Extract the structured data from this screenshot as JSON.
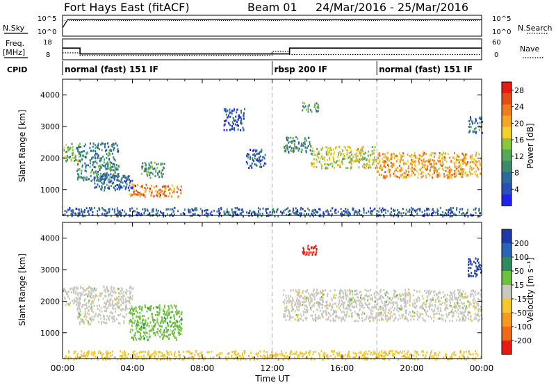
{
  "header": {
    "station": "Fort Hays East (fitACF)",
    "beam": "Beam 01",
    "daterange": "24/Mar/2016 - 25/Mar/2016"
  },
  "left_labels": {
    "nsky": "N.Sky",
    "freq": "Freq.",
    "freq_unit": "[MHz]",
    "cpid": "CPID"
  },
  "right_labels": {
    "nsearch": "N.Search",
    "nave": "Nave"
  },
  "cpid_segments": [
    {
      "label": "normal (fast) 151 IF",
      "start_h": 0
    },
    {
      "label": "rbsp 200 IF",
      "start_h": 12
    },
    {
      "label": "normal (fast) 151 IF",
      "start_h": 18
    }
  ],
  "chart_data": [
    {
      "type": "line",
      "panel": "noise",
      "x_unit": "hours UT",
      "xlim": [
        0,
        24
      ],
      "left_ticks": [
        "10^5",
        "10^0"
      ],
      "right_ticks": [
        "10^5",
        "10^0"
      ],
      "series": [
        {
          "name": "N.Sky",
          "x": [
            0,
            0.3,
            24
          ],
          "y": [
            0.4,
            0.8,
            0.8
          ]
        },
        {
          "name": "N.Search",
          "x": [
            0,
            24
          ],
          "y": [
            0.75,
            0.75
          ]
        }
      ]
    },
    {
      "type": "line",
      "panel": "frequency",
      "x_unit": "hours UT",
      "xlim": [
        0,
        24
      ],
      "left_ticks": [
        "18",
        "8"
      ],
      "right_ticks": [
        "60",
        "0"
      ],
      "freq_ylim": [
        8,
        18
      ],
      "nave_ylim": [
        0,
        60
      ],
      "series": [
        {
          "name": "Freq.",
          "x": [
            0,
            1,
            1,
            13,
            13,
            24
          ],
          "y": [
            13.6,
            13.6,
            10.8,
            10.8,
            13.6,
            13.6
          ]
        },
        {
          "name": "Nave",
          "x": [
            0,
            1,
            1,
            12,
            12,
            13,
            13,
            24
          ],
          "y": [
            20,
            20,
            13,
            13,
            24,
            24,
            15,
            15
          ]
        }
      ]
    },
    {
      "type": "heatmap",
      "panel": "power",
      "ylabel": "Slant Range [km]",
      "xlim": [
        0,
        24
      ],
      "ylim": [
        180,
        4500
      ],
      "yticks": [
        1000,
        2000,
        3000,
        4000
      ],
      "colorbar": {
        "label": "Power [dB]",
        "ticks": [
          4,
          8,
          12,
          16,
          20,
          24,
          28
        ],
        "colors": [
          "#1e22f0",
          "#2a4fb6",
          "#2e6a9e",
          "#3d8a6a",
          "#56a85a",
          "#8cc63f",
          "#f2d22a",
          "#f6a623",
          "#f07d1c",
          "#e84d17",
          "#e81a12"
        ]
      },
      "regions": [
        {
          "x": [
            0,
            1
          ],
          "y": [
            1900,
            2500
          ],
          "level": 0.45
        },
        {
          "x": [
            0.8,
            3.2
          ],
          "y": [
            1300,
            2500
          ],
          "level": 0.3
        },
        {
          "x": [
            1.8,
            4.0
          ],
          "y": [
            1000,
            1500
          ],
          "level": 0.2
        },
        {
          "x": [
            3.8,
            6.8
          ],
          "y": [
            800,
            1200
          ],
          "level": 0.75
        },
        {
          "x": [
            4.5,
            5.8
          ],
          "y": [
            1400,
            1900
          ],
          "level": 0.35
        },
        {
          "x": [
            9.2,
            10.4
          ],
          "y": [
            2900,
            3600
          ],
          "level": 0.15
        },
        {
          "x": [
            10.5,
            11.6
          ],
          "y": [
            1700,
            2300
          ],
          "level": 0.2
        },
        {
          "x": [
            13.7,
            14.7
          ],
          "y": [
            3500,
            3800
          ],
          "level": 0.35
        },
        {
          "x": [
            12.6,
            14.2
          ],
          "y": [
            2200,
            2700
          ],
          "level": 0.3
        },
        {
          "x": [
            14.2,
            18
          ],
          "y": [
            1700,
            2400
          ],
          "level": 0.55
        },
        {
          "x": [
            18,
            24
          ],
          "y": [
            1400,
            2200
          ],
          "level": 0.7
        },
        {
          "x": [
            23.2,
            24
          ],
          "y": [
            2800,
            3400
          ],
          "level": 0.25
        },
        {
          "x": [
            0,
            24
          ],
          "y": [
            180,
            450
          ],
          "level": 0.2
        }
      ]
    },
    {
      "type": "heatmap",
      "panel": "velocity",
      "xlabel": "Time UT",
      "ylabel": "Slant Range [km]",
      "xlim": [
        0,
        24
      ],
      "xticks": [
        "00:00",
        "04:00",
        "08:00",
        "12:00",
        "16:00",
        "20:00",
        "00:00"
      ],
      "ylim": [
        180,
        4500
      ],
      "yticks": [
        1000,
        2000,
        3000,
        4000
      ],
      "colorbar": {
        "label": "Velocity [m s⁻¹]",
        "ticks": [
          200,
          100,
          50,
          15,
          -15,
          -50,
          -100,
          -200
        ],
        "colors": [
          "#1e3aa8",
          "#2a63b8",
          "#2f8a5c",
          "#6cc23c",
          "#c8c8c0",
          "#f2c82a",
          "#f59a1e",
          "#f06a18",
          "#e81a12"
        ]
      },
      "regions": [
        {
          "x": [
            0,
            1
          ],
          "y": [
            1900,
            2500
          ],
          "v": 15
        },
        {
          "x": [
            0.8,
            4.0
          ],
          "y": [
            1300,
            2500
          ],
          "v": 0
        },
        {
          "x": [
            3.8,
            6.8
          ],
          "y": [
            800,
            1900
          ],
          "v": 50
        },
        {
          "x": [
            13.7,
            14.7
          ],
          "y": [
            3500,
            3800
          ],
          "v": -200
        },
        {
          "x": [
            12.6,
            24
          ],
          "y": [
            1400,
            2400
          ],
          "v": 0
        },
        {
          "x": [
            23.2,
            24
          ],
          "y": [
            2800,
            3400
          ],
          "v": 200
        },
        {
          "x": [
            0,
            24
          ],
          "y": [
            180,
            450
          ],
          "v": -50
        }
      ]
    }
  ]
}
